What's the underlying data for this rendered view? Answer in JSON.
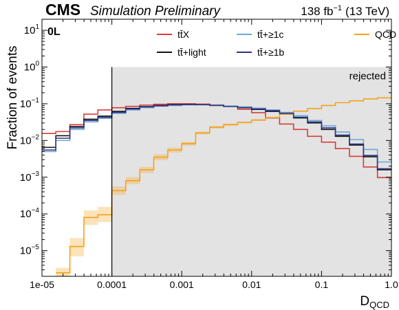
{
  "header": {
    "experiment": "CMS",
    "status": "Simulation Preliminary",
    "lumi": "138 fb",
    "lumi_exp": "−1",
    "energy": "(13 TeV)"
  },
  "chart_data": {
    "type": "line",
    "step": true,
    "xscale": "log",
    "yscale": "log",
    "xlim": [
      1e-05,
      1.0
    ],
    "ylim": [
      2e-06,
      20
    ],
    "xlabel": "D",
    "xlabel_sub": "QCD",
    "ylabel": "Fraction of events",
    "channel_label": "0L",
    "region_label": "rejected",
    "cut_value": 0.0001,
    "rejected_range": [
      0.0001,
      1.0
    ],
    "legend_position": "top-right",
    "xticks": [
      {
        "value": 1e-05,
        "label": "1e-05"
      },
      {
        "value": 0.0001,
        "label": "0.0001"
      },
      {
        "value": 0.001,
        "label": "0.001"
      },
      {
        "value": 0.01,
        "label": "0.01"
      },
      {
        "value": 0.1,
        "label": "0.1"
      },
      {
        "value": 1.0,
        "label": "1.0"
      }
    ],
    "yticks": [
      {
        "value": 1e-05,
        "base": "10",
        "exp": "−5"
      },
      {
        "value": 0.0001,
        "base": "10",
        "exp": "−4"
      },
      {
        "value": 0.001,
        "base": "10",
        "exp": "−3"
      },
      {
        "value": 0.01,
        "base": "10",
        "exp": "−2"
      },
      {
        "value": 0.1,
        "base": "10",
        "exp": "−1"
      },
      {
        "value": 1,
        "base": "10",
        "exp": "0"
      },
      {
        "value": 10,
        "base": "10",
        "exp": "1"
      }
    ],
    "bin_edges": [
      1e-05,
      1.58e-05,
      2.51e-05,
      3.98e-05,
      6.31e-05,
      0.0001,
      0.000158,
      0.000251,
      0.000398,
      0.000631,
      0.001,
      0.00158,
      0.00251,
      0.00398,
      0.00631,
      0.01,
      0.0158,
      0.0251,
      0.0398,
      0.0631,
      0.1,
      0.158,
      0.251,
      0.398,
      0.631,
      1.0
    ],
    "series": [
      {
        "name": "tt̄X",
        "color": "#d93a3a",
        "values": [
          0.0155,
          0.0175,
          0.027,
          0.052,
          0.068,
          0.078,
          0.085,
          0.092,
          0.097,
          0.1,
          0.1,
          0.098,
          0.093,
          0.086,
          0.071,
          0.057,
          0.041,
          0.028,
          0.02,
          0.013,
          0.009,
          0.006,
          0.0037,
          0.0019,
          0.00098
        ]
      },
      {
        "name": "tt̄+light",
        "color": "#111111",
        "values": [
          0.0065,
          0.0135,
          0.024,
          0.038,
          0.046,
          0.062,
          0.075,
          0.084,
          0.09,
          0.095,
          0.096,
          0.095,
          0.091,
          0.085,
          0.078,
          0.07,
          0.062,
          0.052,
          0.041,
          0.03,
          0.02,
          0.013,
          0.0075,
          0.0036,
          0.0016
        ]
      },
      {
        "name": "tt̄+≥1c",
        "color": "#6fa8d4",
        "values": [
          0.005,
          0.01,
          0.02,
          0.032,
          0.04,
          0.055,
          0.068,
          0.078,
          0.086,
          0.09,
          0.093,
          0.094,
          0.092,
          0.087,
          0.082,
          0.076,
          0.068,
          0.058,
          0.047,
          0.035,
          0.025,
          0.017,
          0.0106,
          0.0057,
          0.0026
        ]
      },
      {
        "name": "QCD",
        "color": "#f5a11a",
        "values": [
          null,
          2.5e-06,
          1.3e-05,
          8e-05,
          9.5e-05,
          0.00043,
          0.0008,
          0.0016,
          0.0035,
          0.0055,
          0.0082,
          0.016,
          0.023,
          0.027,
          0.031,
          0.036,
          0.042,
          0.052,
          0.063,
          0.074,
          0.09,
          0.107,
          0.12,
          0.135,
          0.145
        ]
      },
      {
        "name": "tt̄+≥1b",
        "color": "#2e3588",
        "values": [
          0.0055,
          0.0115,
          0.022,
          0.035,
          0.043,
          0.058,
          0.072,
          0.082,
          0.088,
          0.093,
          0.095,
          0.094,
          0.09,
          0.084,
          0.079,
          0.072,
          0.065,
          0.055,
          0.043,
          0.032,
          0.022,
          0.014,
          0.008,
          0.0039,
          0.0017
        ]
      }
    ],
    "qcd_uncertainty": {
      "lower": [
        null,
        1.8e-06,
        7e-06,
        5e-05,
        6e-05,
        0.00033,
        0.00065,
        0.0013,
        0.0029,
        0.0047,
        0.0072,
        0.0145,
        0.021,
        0.025,
        0.029,
        0.034,
        0.04,
        0.05,
        0.061,
        0.072,
        0.088,
        0.105,
        0.118,
        0.133,
        0.143
      ],
      "upper": [
        null,
        3.4e-06,
        2.2e-05,
        0.000125,
        0.000155,
        0.00056,
        0.001,
        0.0019,
        0.0042,
        0.0064,
        0.0093,
        0.0175,
        0.025,
        0.029,
        0.033,
        0.038,
        0.044,
        0.054,
        0.065,
        0.076,
        0.092,
        0.109,
        0.122,
        0.137,
        0.147
      ]
    }
  }
}
